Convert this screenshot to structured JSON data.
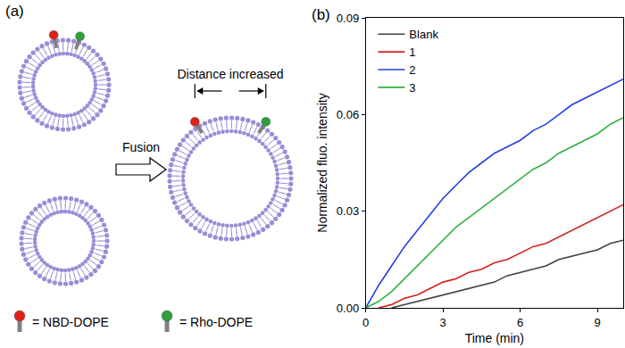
{
  "diagram": {
    "panel_label": "(a)",
    "arrow_label": "Fusion",
    "distance_label": "Distance increased",
    "legend": [
      {
        "label": "= NBD-DOPE",
        "color": "#e0201c"
      },
      {
        "label": "= Rho-DOPE",
        "color": "#2e9e3e"
      }
    ]
  },
  "chart_data": {
    "type": "line",
    "title": "(b)",
    "x_label": "Time (min)",
    "y_label": "Normalized fluo. intensity",
    "x": [
      0,
      0.5,
      1,
      1.5,
      2,
      2.5,
      3,
      3.5,
      4,
      4.5,
      5,
      5.5,
      6,
      6.5,
      7,
      7.5,
      8,
      8.5,
      9,
      9.5,
      10
    ],
    "series": [
      {
        "name": "Blank",
        "color": "#404040",
        "values": [
          null,
          null,
          0.0,
          0.001,
          0.002,
          0.003,
          0.004,
          0.005,
          0.006,
          0.007,
          0.008,
          0.01,
          0.011,
          0.012,
          0.013,
          0.015,
          0.016,
          0.017,
          0.018,
          0.02,
          0.021
        ]
      },
      {
        "name": "1",
        "color": "#d62020",
        "values": [
          null,
          0.0,
          0.001,
          0.003,
          0.004,
          0.006,
          0.008,
          0.009,
          0.011,
          0.012,
          0.014,
          0.015,
          0.017,
          0.019,
          0.02,
          0.022,
          0.024,
          0.026,
          0.028,
          0.03,
          0.032
        ]
      },
      {
        "name": "2",
        "color": "#2040e0",
        "values": [
          0.0,
          0.007,
          0.013,
          0.019,
          0.024,
          0.029,
          0.034,
          0.038,
          0.042,
          0.045,
          0.048,
          0.05,
          0.052,
          0.055,
          0.057,
          0.06,
          0.063,
          0.065,
          0.067,
          0.069,
          0.071
        ]
      },
      {
        "name": "3",
        "color": "#30b040",
        "values": [
          0.0,
          0.002,
          0.005,
          0.009,
          0.013,
          0.017,
          0.021,
          0.025,
          0.028,
          0.031,
          0.034,
          0.037,
          0.04,
          0.043,
          0.045,
          0.048,
          0.05,
          0.052,
          0.054,
          0.057,
          0.059
        ]
      }
    ],
    "xlim": [
      0,
      10
    ],
    "xticks": [
      0,
      3,
      6,
      9
    ],
    "ylim": [
      0,
      0.09
    ],
    "yticks": [
      {
        "value": 0,
        "label": "0.00"
      },
      0.03,
      0.06,
      0.09
    ],
    "grid": false,
    "legend": "upper left"
  }
}
